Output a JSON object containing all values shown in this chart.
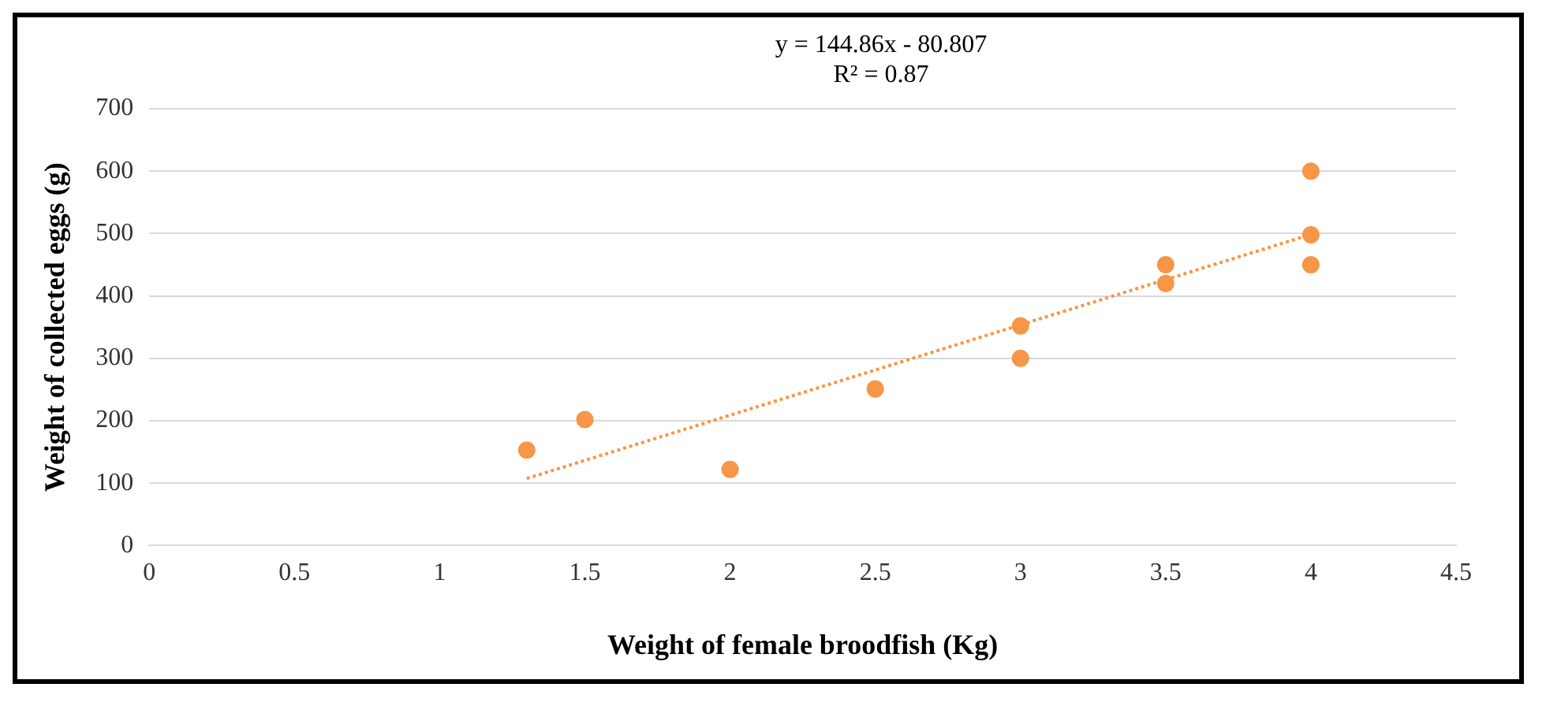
{
  "chart_data": {
    "type": "scatter",
    "xlabel": "Weight of female broodfish (Kg)",
    "ylabel": "Weight of collected eggs (g)",
    "annotations": [
      "y = 144.86x - 80.807",
      "R² = 0.87"
    ],
    "xlim": [
      0,
      4.5
    ],
    "xticks": [
      0,
      0.5,
      1,
      1.5,
      2,
      2.5,
      3,
      3.5,
      4,
      4.5
    ],
    "ylim": [
      0,
      700
    ],
    "yticks": [
      0,
      100,
      200,
      300,
      400,
      500,
      600,
      700
    ],
    "grid": "y",
    "marker": "circle",
    "series": [
      {
        "color": "#f79646",
        "x": [
          1.3,
          1.5,
          2,
          2.5,
          3,
          3,
          3.5,
          3.5,
          4,
          4,
          4
        ],
        "values": [
          153,
          202,
          122,
          251,
          352,
          300,
          450,
          420,
          600,
          498,
          450
        ]
      },
      {
        "type": "line",
        "color": "#f79646",
        "line_style": "dotted",
        "marker": "none",
        "x": [
          1.3,
          4
        ],
        "values": [
          107.5,
          498.6
        ]
      }
    ]
  }
}
